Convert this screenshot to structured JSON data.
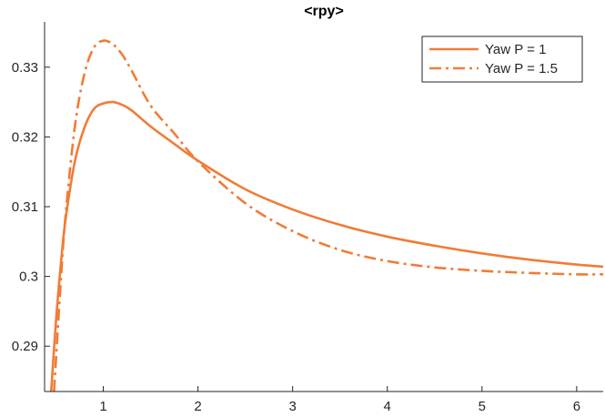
{
  "chart_data": {
    "type": "line",
    "title": "<rpy>",
    "xlabel": "",
    "ylabel": "",
    "xlim": [
      0.38,
      6.28
    ],
    "ylim": [
      0.2835,
      0.3365
    ],
    "xticks": [
      1,
      2,
      3,
      4,
      5,
      6
    ],
    "xtick_labels": [
      "1",
      "2",
      "3",
      "4",
      "5",
      "6"
    ],
    "yticks": [
      0.29,
      0.3,
      0.31,
      0.32,
      0.33
    ],
    "ytick_labels": [
      "0.29",
      "0.3",
      "0.31",
      "0.32",
      "0.33"
    ],
    "grid": false,
    "legend_position": "top-right",
    "line_color": "#f07c36",
    "series": [
      {
        "name": "Yaw P = 1",
        "style": "solid",
        "x": [
          0.45,
          0.5,
          0.55,
          0.6,
          0.7,
          0.8,
          0.9,
          1.0,
          1.1,
          1.2,
          1.3,
          1.5,
          1.75,
          2.0,
          2.5,
          3.0,
          3.5,
          4.0,
          4.5,
          5.0,
          5.5,
          6.0,
          6.28
        ],
        "y": [
          0.2835,
          0.2935,
          0.3015,
          0.308,
          0.3165,
          0.3213,
          0.324,
          0.3248,
          0.325,
          0.3246,
          0.3238,
          0.3215,
          0.319,
          0.3166,
          0.3125,
          0.3096,
          0.3074,
          0.3057,
          0.3044,
          0.3033,
          0.3024,
          0.3017,
          0.3014
        ]
      },
      {
        "name": "Yaw P = 1.5",
        "style": "dashdot",
        "x": [
          0.48,
          0.5,
          0.55,
          0.6,
          0.7,
          0.8,
          0.9,
          1.0,
          1.1,
          1.2,
          1.3,
          1.5,
          1.75,
          2.0,
          2.5,
          3.0,
          3.5,
          4.0,
          4.5,
          5.0,
          5.5,
          6.0,
          6.28
        ],
        "y": [
          0.2835,
          0.288,
          0.299,
          0.3085,
          0.3215,
          0.329,
          0.3328,
          0.3338,
          0.3333,
          0.3318,
          0.3295,
          0.3245,
          0.3205,
          0.3165,
          0.3105,
          0.3065,
          0.3038,
          0.3022,
          0.3013,
          0.3008,
          0.3005,
          0.3003,
          0.3003
        ]
      }
    ]
  }
}
